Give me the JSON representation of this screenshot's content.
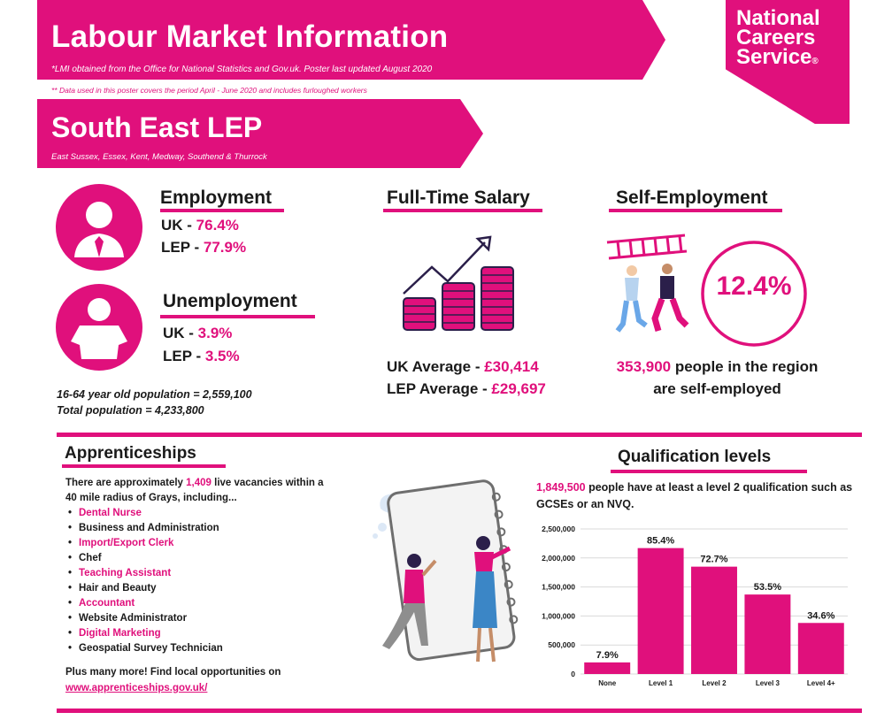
{
  "header": {
    "title": "Labour Market Information",
    "note1": "*LMI obtained from the Office for National Statistics and Gov.uk. Poster last updated August 2020",
    "note2": "** Data used in this poster covers the period April - June 2020 and includes furloughed workers"
  },
  "region": {
    "title": "South East LEP",
    "subtitle": "East Sussex, Essex, Kent, Medway, Southend & Thurrock"
  },
  "logo": {
    "line1": "National",
    "line2": "Careers",
    "line3": "Service",
    "mark": "®"
  },
  "employment": {
    "heading": "Employment",
    "uk_label": "UK - ",
    "uk_value": "76.4%",
    "lep_label": "LEP - ",
    "lep_value": "77.9%"
  },
  "unemployment": {
    "heading": "Unemployment",
    "uk_label": "UK - ",
    "uk_value": "3.9%",
    "lep_label": "LEP - ",
    "lep_value": "3.5%"
  },
  "population": {
    "line1": "16-64 year old population = 2,559,100",
    "line2": "Total population = 4,233,800"
  },
  "salary": {
    "heading": "Full-Time Salary",
    "uk_label": "UK Average - ",
    "uk_value": "£30,414",
    "lep_label": "LEP Average - ",
    "lep_value": "£29,697"
  },
  "self_employment": {
    "heading": "Self-Employment",
    "percent": "12.4%",
    "count": "353,900",
    "text1": " people in the region",
    "text2": "are self-employed"
  },
  "apprenticeships": {
    "heading": "Apprenticeships",
    "intro_pre": "There are approximately ",
    "intro_count": "1,409",
    "intro_post": " live vacancies within a",
    "intro_line2": "40 mile radius of Grays, including...",
    "items": [
      {
        "label": "Dental Nurse",
        "highlight": true
      },
      {
        "label": "Business and Administration",
        "highlight": false
      },
      {
        "label": "Import/Export Clerk",
        "highlight": true
      },
      {
        "label": "Chef",
        "highlight": false
      },
      {
        "label": "Teaching Assistant",
        "highlight": true
      },
      {
        "label": "Hair and Beauty",
        "highlight": false
      },
      {
        "label": "Accountant",
        "highlight": true
      },
      {
        "label": "Website Administrator",
        "highlight": false
      },
      {
        "label": "Digital Marketing",
        "highlight": true
      },
      {
        "label": "Geospatial Survey Technician",
        "highlight": false
      }
    ],
    "outro": "Plus many more! Find local opportunities on",
    "link": "www.apprenticeships.gov.uk/"
  },
  "qualifications": {
    "heading": "Qualification levels",
    "count": "1,849,500",
    "text1": " people have at least a level 2 qualification such as",
    "text2": "GCSEs or an NVQ."
  },
  "colors": {
    "accent": "#e0107c",
    "dark": "#2b1f4a"
  },
  "chart_data": {
    "type": "bar",
    "categories": [
      "None",
      "Level 1",
      "Level 2",
      "Level 3",
      "Level 4+"
    ],
    "values": [
      200000,
      2170000,
      1850000,
      1370000,
      880000
    ],
    "data_labels": [
      "7.9%",
      "85.4%",
      "72.7%",
      "53.5%",
      "34.6%"
    ],
    "ylim": [
      0,
      2500000
    ],
    "yticks": [
      0,
      500000,
      1000000,
      1500000,
      2000000,
      2500000
    ],
    "ytick_labels": [
      "0",
      "500,000",
      "1,000,000",
      "1,500,000",
      "2,000,000",
      "2,500,000"
    ],
    "grid": true,
    "color": "#e0107c"
  }
}
